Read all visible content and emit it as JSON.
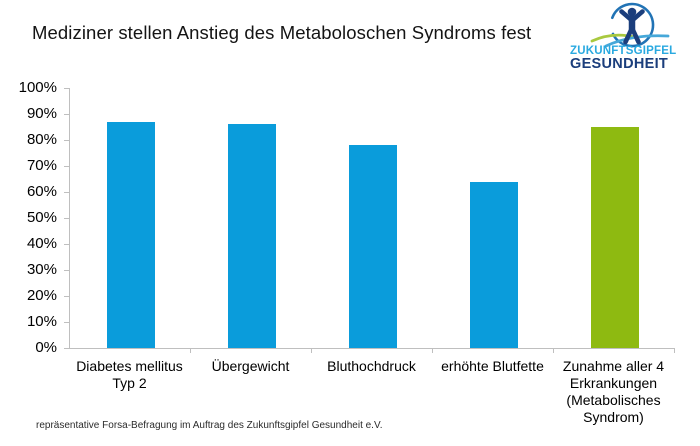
{
  "header": {
    "title": "Mediziner stellen Anstieg des Metaboloschen Syndroms fest",
    "logo": {
      "line1": "ZUKUNFTSGIPFEL",
      "line2": "GESUNDHEIT"
    }
  },
  "chart_data": {
    "type": "bar",
    "title": "Mediziner stellen Anstieg des Metaboloschen Syndroms fest",
    "categories": [
      "Diabetes mellitus\nTyp 2",
      "Übergewicht",
      "Bluthochdruck",
      "erhöhte Blutfette",
      "Zunahme aller 4\nErkrankungen\n(Metabolisches\nSyndrom)"
    ],
    "values": [
      87,
      86,
      78,
      64,
      85
    ],
    "unit": "%",
    "bar_colors": [
      "#0A9CDB",
      "#0A9CDB",
      "#0A9CDB",
      "#0A9CDB",
      "#8EBA11"
    ],
    "xlabel": "",
    "ylabel": "",
    "ylim": [
      0,
      100
    ],
    "ytick_labels": [
      "0%",
      "10%",
      "20%",
      "30%",
      "40%",
      "50%",
      "60%",
      "70%",
      "80%",
      "90%",
      "100%"
    ],
    "grid": false,
    "legend": false
  },
  "footer": {
    "note": "repräsentative Forsa-Befragung im Auftrag des Zukunftsgipfel Gesundheit e.V."
  },
  "colors": {
    "bar_blue": "#0A9CDB",
    "bar_green": "#8EBA11",
    "axis_gray": "#BFBFBF",
    "logo_light_blue": "#29A9E0",
    "logo_navy": "#1B3E7C",
    "logo_circle_blue": "#2173B5",
    "logo_swoosh_green": "#A9C93F",
    "logo_swoosh_blue": "#46A8D9"
  }
}
